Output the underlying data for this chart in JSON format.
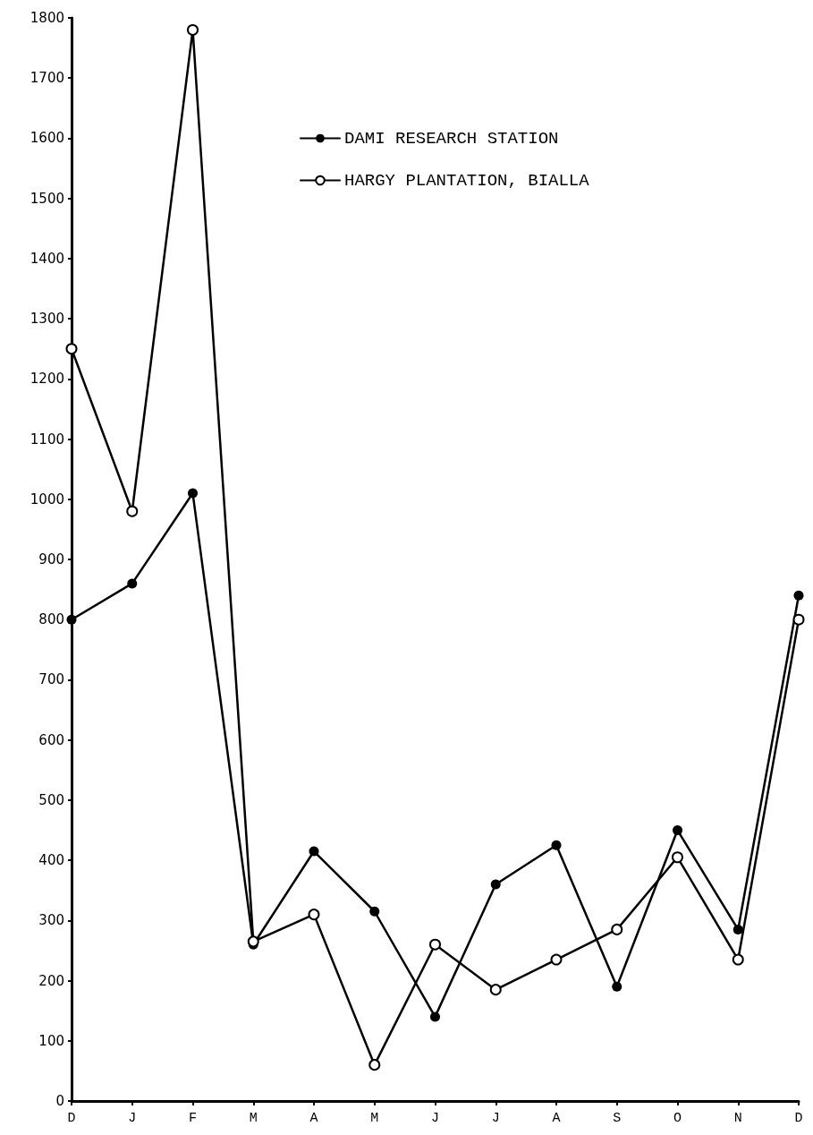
{
  "chart_data": {
    "type": "line",
    "categories": [
      "D",
      "J",
      "F",
      "M",
      "A",
      "M",
      "J",
      "J",
      "A",
      "S",
      "O",
      "N",
      "D"
    ],
    "series": [
      {
        "name": "DAMI RESEARCH STATION",
        "color": "#000000",
        "values": [
          800,
          860,
          1010,
          260,
          415,
          315,
          140,
          360,
          425,
          190,
          450,
          285,
          840
        ]
      },
      {
        "name": "HARGY PLANTATION, BIALLA",
        "color": "#000000",
        "values": [
          1250,
          980,
          1780,
          265,
          310,
          60,
          260,
          185,
          235,
          285,
          405,
          235,
          800
        ]
      }
    ],
    "ylim": [
      0,
      1800
    ],
    "yticks": [
      0,
      100,
      200,
      300,
      400,
      500,
      600,
      700,
      800,
      900,
      1000,
      1100,
      1200,
      1300,
      1400,
      1500,
      1600,
      1700,
      1800
    ],
    "grid": false,
    "legend": "top right",
    "marker": "circle",
    "line_style": "solid"
  }
}
